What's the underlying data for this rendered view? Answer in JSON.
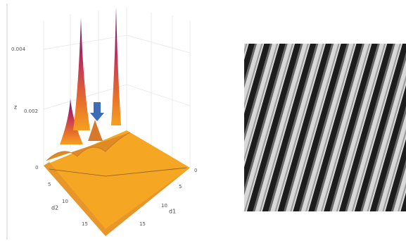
{
  "surface_plot": {
    "z_axis": {
      "title": "z",
      "ticks": [
        "0.004",
        "0.002"
      ]
    },
    "d2_axis": {
      "title": "d2",
      "ticks": [
        "0",
        "5",
        "10",
        "15"
      ]
    },
    "d1_axis": {
      "title": "d1",
      "ticks": [
        "0",
        "5",
        "10",
        "15"
      ]
    }
  }
}
